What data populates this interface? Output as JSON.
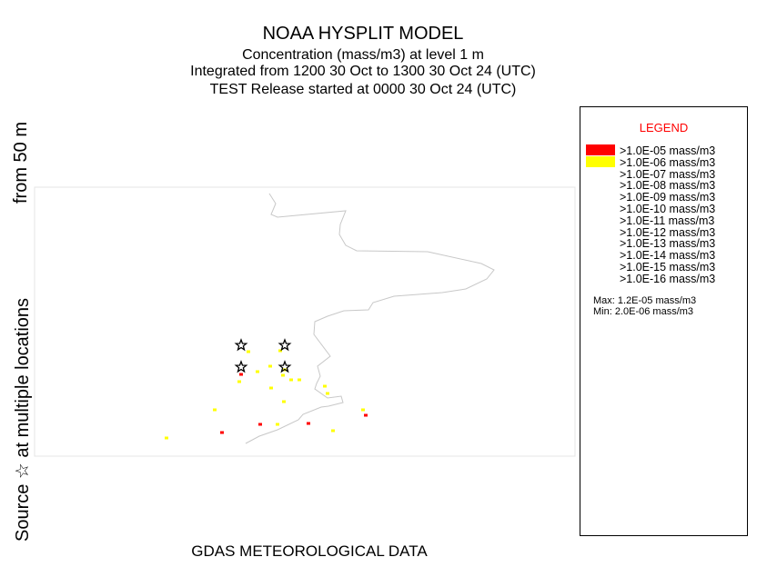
{
  "header": {
    "title": "NOAA HYSPLIT MODEL",
    "line2": "Concentration  (mass/m3) at level     1 m",
    "line3": "Integrated from 1200 30 Oct to 1300 30 Oct 24 (UTC)",
    "line4": "TEST Release started at 0000 30 Oct 24 (UTC)"
  },
  "side_label": {
    "part1": "Source ☆ at multiple locations",
    "part2": "from  50 m"
  },
  "legend": {
    "title": "LEGEND",
    "title_color": "#ff0000",
    "entries": [
      {
        "label": ">1.0E-05 mass/m3",
        "color": "#ff0000"
      },
      {
        "label": ">1.0E-06 mass/m3",
        "color": "#ffff00"
      },
      {
        "label": ">1.0E-07 mass/m3",
        "color": null
      },
      {
        "label": ">1.0E-08 mass/m3",
        "color": null
      },
      {
        "label": ">1.0E-09 mass/m3",
        "color": null
      },
      {
        "label": ">1.0E-10 mass/m3",
        "color": null
      },
      {
        "label": ">1.0E-11 mass/m3",
        "color": null
      },
      {
        "label": ">1.0E-12 mass/m3",
        "color": null
      },
      {
        "label": ">1.0E-13 mass/m3",
        "color": null
      },
      {
        "label": ">1.0E-14 mass/m3",
        "color": null
      },
      {
        "label": ">1.0E-15 mass/m3",
        "color": null
      },
      {
        "label": ">1.0E-16 mass/m3",
        "color": null
      }
    ],
    "max": "Max: 1.2E-05 mass/m3",
    "min": "Min: 2.0E-06 mass/m3"
  },
  "footer": "GDAS METEOROLOGICAL DATA",
  "map": {
    "coastline_color": "#c8c8c8",
    "source_icon": "star-outline-icon",
    "source_count": 4
  }
}
